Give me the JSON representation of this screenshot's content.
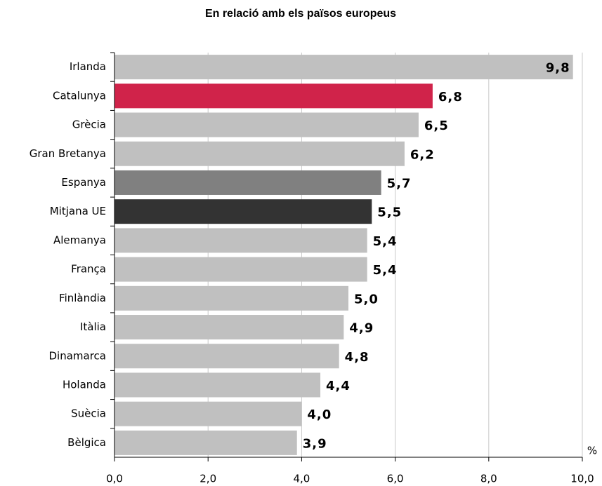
{
  "chart_data": {
    "type": "barh",
    "title": "En relació amb els països europeus",
    "categories": [
      "Irlanda",
      "Catalunya",
      "Grècia",
      "Gran Bretanya",
      "Espanya",
      "Mitjana UE",
      "Alemanya",
      "França",
      "Finlàndia",
      "Itàlia",
      "Dinamarca",
      "Holanda",
      "Suècia",
      "Bèlgica"
    ],
    "values": [
      9.8,
      6.8,
      6.5,
      6.2,
      5.7,
      5.5,
      5.4,
      5.4,
      5.0,
      4.9,
      4.8,
      4.4,
      4.0,
      3.9
    ],
    "value_labels": [
      "9,8",
      "6,8",
      "6,5",
      "6,2",
      "5,7",
      "5,5",
      "5,4",
      "5,4",
      "5,0",
      "4,9",
      "4,8",
      "4,4",
      "4,0",
      "3,9"
    ],
    "colors": [
      "#c0c0c0",
      "#d0234a",
      "#c0c0c0",
      "#c0c0c0",
      "#808080",
      "#333333",
      "#c0c0c0",
      "#c0c0c0",
      "#c0c0c0",
      "#c0c0c0",
      "#c0c0c0",
      "#c0c0c0",
      "#c0c0c0",
      "#c0c0c0"
    ],
    "xlabel": "%",
    "xlim": [
      0,
      10
    ],
    "xticks": [
      {
        "value": 0,
        "label": "0,0"
      },
      {
        "value": 2,
        "label": "2,0"
      },
      {
        "value": 4,
        "label": "4,0"
      },
      {
        "value": 6,
        "label": "6,0"
      },
      {
        "value": 8,
        "label": "8,0"
      },
      {
        "value": 10,
        "label": "10,0"
      }
    ],
    "grid": true
  }
}
